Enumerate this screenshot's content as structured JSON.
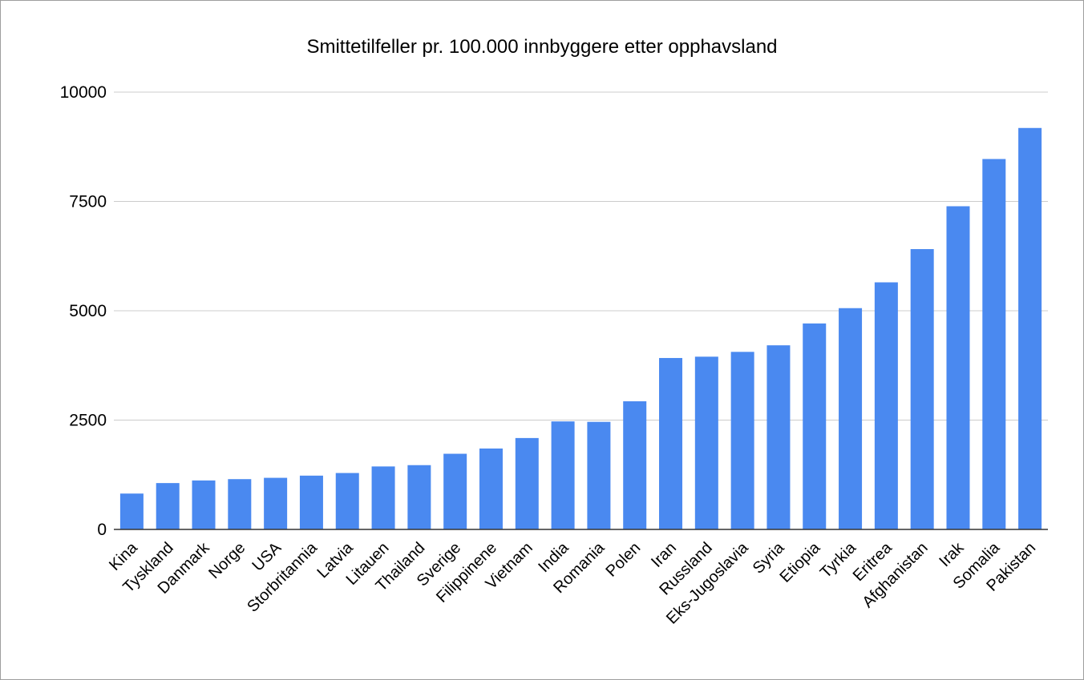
{
  "chart_data": {
    "type": "bar",
    "title": "Smittetilfeller pr. 100.000 innbyggere etter opphavsland",
    "xlabel": "",
    "ylabel": "",
    "ylim": [
      0,
      10000
    ],
    "yticks": [
      0,
      2500,
      5000,
      7500,
      10000
    ],
    "grid": true,
    "legend": "none",
    "bar_color": "#4a89f0",
    "gridline_color": "#cccccc",
    "axis_color": "#333333",
    "categories": [
      "Kina",
      "Tyskland",
      "Danmark",
      "Norge",
      "USA",
      "Storbritannia",
      "Latvia",
      "Litauen",
      "Thailand",
      "Sverige",
      "Filippinene",
      "Vietnam",
      "India",
      "Romania",
      "Polen",
      "Iran",
      "Russland",
      "Eks-Jugoslavia",
      "Syria",
      "Etiopia",
      "Tyrkia",
      "Eritrea",
      "Afghanistan",
      "Irak",
      "Somalia",
      "Pakistan"
    ],
    "values": [
      820,
      1060,
      1120,
      1150,
      1180,
      1230,
      1290,
      1440,
      1470,
      1730,
      1850,
      2090,
      2470,
      2460,
      2930,
      3920,
      3950,
      4060,
      4210,
      4710,
      5060,
      5650,
      6410,
      7390,
      8470,
      9180
    ]
  }
}
